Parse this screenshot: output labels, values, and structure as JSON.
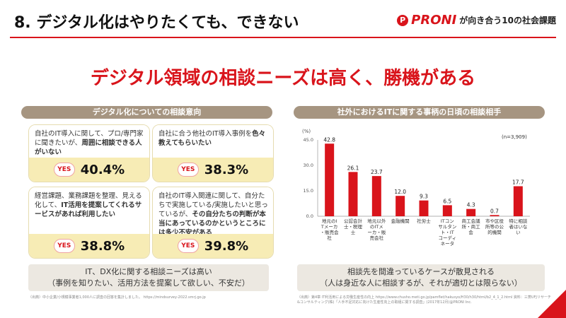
{
  "header": {
    "title": "8. デジタル化はやりたくても、できない",
    "brand_name": "PRONI",
    "brand_tagline": "が向き合う10の社会課題",
    "accent": "#d9141b"
  },
  "headline": "デジタル領域の相談ニーズは高く、勝機がある",
  "left": {
    "header": "デジタル化についての相談意向",
    "cards": [
      {
        "pre": "自社のIT導入に関して、プロ/専門家に聞きたいが、",
        "strong": "周囲に相談できる人がいない",
        "post": "",
        "yes": "YES",
        "pct": "40.4%"
      },
      {
        "pre": "自社に合う他社のIT導入事例を",
        "strong": "色々教えてもらいたい",
        "post": "",
        "yes": "YES",
        "pct": "38.3%"
      },
      {
        "pre": "経営課題、業務課題を整理、見える化して、",
        "strong": "IT活用を提案してくれるサービスがあれば利用したい",
        "post": "",
        "yes": "YES",
        "pct": "38.8%"
      },
      {
        "pre": "自社のIT導入関連に関して、自分たちで実施している/実施したいと思っているが、",
        "strong": "その自分たちの判断が本当にあっているのかというところには多少不安がある",
        "post": "",
        "yes": "YES",
        "pct": "39.8%"
      }
    ],
    "summary_line1": "IT、DX化に関する相談ニーズは高い",
    "summary_line2": "（事例を知りたい、活用方法を提案して欲しい、不安だ）",
    "source": "（出典）中小企業/小規模事業者1,000人に調査の回答を集計しました。 https://mindsurvey-2022.smrj.go.jp"
  },
  "right": {
    "header": "社外におけるITに関する事柄の日頃の相談相手",
    "summary_line1": "相談先を間違っているケースが散見される",
    "summary_line2": "（人は身近な人に相談するが、それが適切とは限らない）",
    "source": "（出典）第4章 IT利活用による労働生産性の向上 https://www.chusho.meti.go.jp/pamflet/hakusyo/H30/h30/html/b2_4_1_2.html 資料：三菱UFJリサーチ&コンサルティング(株)「人手不足対応に向けた生産性向上の取組に関する調査」(2017年12月)@PRONI Inc."
  },
  "chart_data": {
    "type": "bar",
    "title": "",
    "ylabel": "(%)",
    "n_label": "(n=3,909)",
    "ylim": [
      0,
      45
    ],
    "yticks": [
      "0.0",
      "15.0",
      "30.0",
      "45.0"
    ],
    "bar_color": "#d9141b",
    "categories": [
      "地元のITメーカ・販売会社",
      "公認会計士・税理士",
      "地元以外のITメーカ・販売会社",
      "金融機関",
      "社労士",
      "ITコンサルタント・ITコーディネータ",
      "商工会議所・商工会",
      "市や区役所等の公的機関",
      "特に相談者はいない"
    ],
    "values": [
      42.8,
      26.1,
      23.7,
      12.0,
      9.3,
      6.5,
      4.3,
      0.7,
      17.7
    ],
    "value_labels": [
      "42.8",
      "26.1",
      "23.7",
      "12.0",
      "9.3",
      "6.5",
      "4.3",
      "0.7",
      "17.7"
    ]
  }
}
